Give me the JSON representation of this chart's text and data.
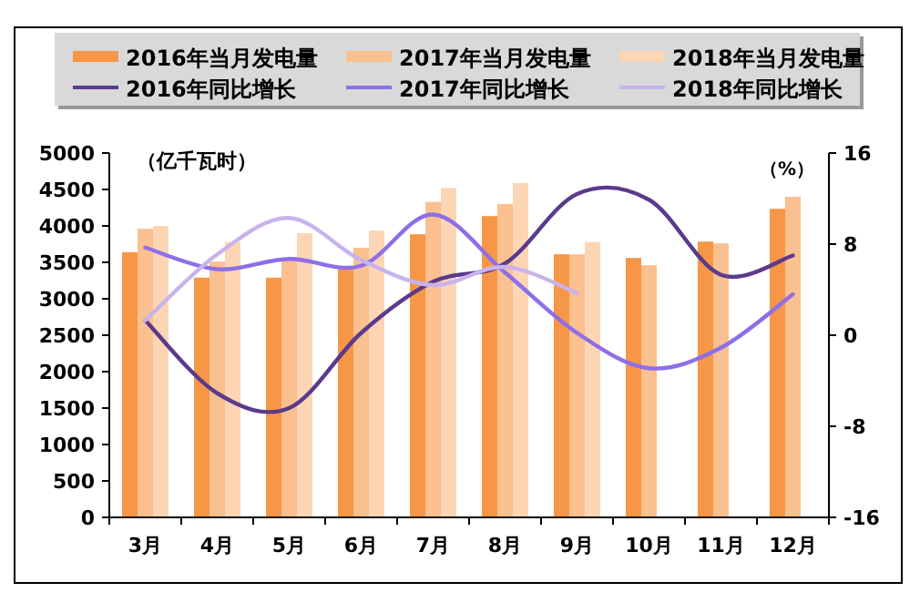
{
  "chart_data": {
    "type": "bar",
    "categories": [
      "3月",
      "4月",
      "5月",
      "6月",
      "7月",
      "8月",
      "9月",
      "10月",
      "11月",
      "12月"
    ],
    "series": [
      {
        "name": "2016年当月发电量",
        "color": "#f79646",
        "values": [
          3640,
          3290,
          3290,
          3430,
          3885,
          4135,
          3610,
          3560,
          3785,
          4235
        ]
      },
      {
        "name": "2017年当月发电量",
        "color": "#fac090",
        "values": [
          3960,
          3510,
          3530,
          3700,
          4330,
          4300,
          3610,
          3460,
          3760,
          4400
        ]
      },
      {
        "name": "2018年当月发电量",
        "color": "#fcd5b5",
        "values": [
          4000,
          3780,
          3900,
          3935,
          4520,
          4590,
          3780,
          null,
          null,
          null
        ]
      },
      {
        "name": "2016年同比增长",
        "type": "line",
        "axis": "y2",
        "color": "#5b3a8c",
        "values": [
          1.3,
          -5.1,
          -6.4,
          0.2,
          4.7,
          6.3,
          12.4,
          11.9,
          5.3,
          7.0
        ]
      },
      {
        "name": "2017年同比增长",
        "type": "line",
        "axis": "y2",
        "color": "#8e6ee8",
        "values": [
          7.7,
          5.8,
          6.7,
          6.1,
          10.6,
          5.5,
          0.2,
          -2.9,
          -1.1,
          3.6
        ]
      },
      {
        "name": "2018年同比增长",
        "type": "line",
        "axis": "y2",
        "color": "#c9b3ec",
        "values": [
          1.3,
          7.1,
          10.3,
          6.6,
          4.4,
          6.0,
          3.7,
          null,
          null,
          null
        ]
      }
    ],
    "ylabel": "（亿千瓦时）",
    "y2label": "（%）",
    "ylim": [
      0,
      5000
    ],
    "yticks": [
      0,
      500,
      1000,
      1500,
      2000,
      2500,
      3000,
      3500,
      4000,
      4500,
      5000
    ],
    "y2lim": [
      -16,
      16
    ],
    "y2ticks": [
      -16,
      -8,
      0,
      8,
      16
    ],
    "legend": "top"
  }
}
